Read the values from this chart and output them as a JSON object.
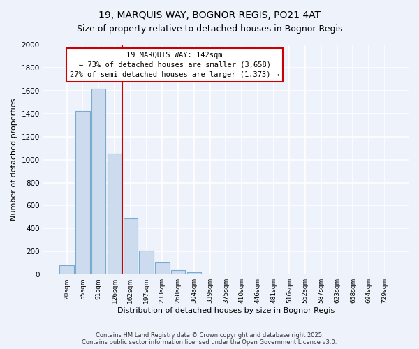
{
  "title": "19, MARQUIS WAY, BOGNOR REGIS, PO21 4AT",
  "subtitle": "Size of property relative to detached houses in Bognor Regis",
  "xlabel": "Distribution of detached houses by size in Bognor Regis",
  "ylabel": "Number of detached properties",
  "bar_labels": [
    "20sqm",
    "55sqm",
    "91sqm",
    "126sqm",
    "162sqm",
    "197sqm",
    "233sqm",
    "268sqm",
    "304sqm",
    "339sqm",
    "375sqm",
    "410sqm",
    "446sqm",
    "481sqm",
    "516sqm",
    "552sqm",
    "587sqm",
    "623sqm",
    "658sqm",
    "694sqm",
    "729sqm"
  ],
  "bar_values": [
    80,
    1420,
    1620,
    1050,
    490,
    205,
    105,
    40,
    20,
    0,
    0,
    0,
    0,
    0,
    0,
    0,
    0,
    0,
    0,
    0,
    0
  ],
  "bar_color": "#ccdcee",
  "bar_edge_color": "#7aaad0",
  "vline_color": "#cc0000",
  "annotation_title": "19 MARQUIS WAY: 142sqm",
  "annotation_line1": "← 73% of detached houses are smaller (3,658)",
  "annotation_line2": "27% of semi-detached houses are larger (1,373) →",
  "annotation_box_color": "#ffffff",
  "annotation_box_edge": "#cc0000",
  "ylim": [
    0,
    2000
  ],
  "yticks": [
    0,
    200,
    400,
    600,
    800,
    1000,
    1200,
    1400,
    1600,
    1800,
    2000
  ],
  "footer_line1": "Contains HM Land Registry data © Crown copyright and database right 2025.",
  "footer_line2": "Contains public sector information licensed under the Open Government Licence v3.0.",
  "bg_color": "#eef2fb",
  "grid_color": "#ffffff",
  "title_fontsize": 10,
  "subtitle_fontsize": 9
}
